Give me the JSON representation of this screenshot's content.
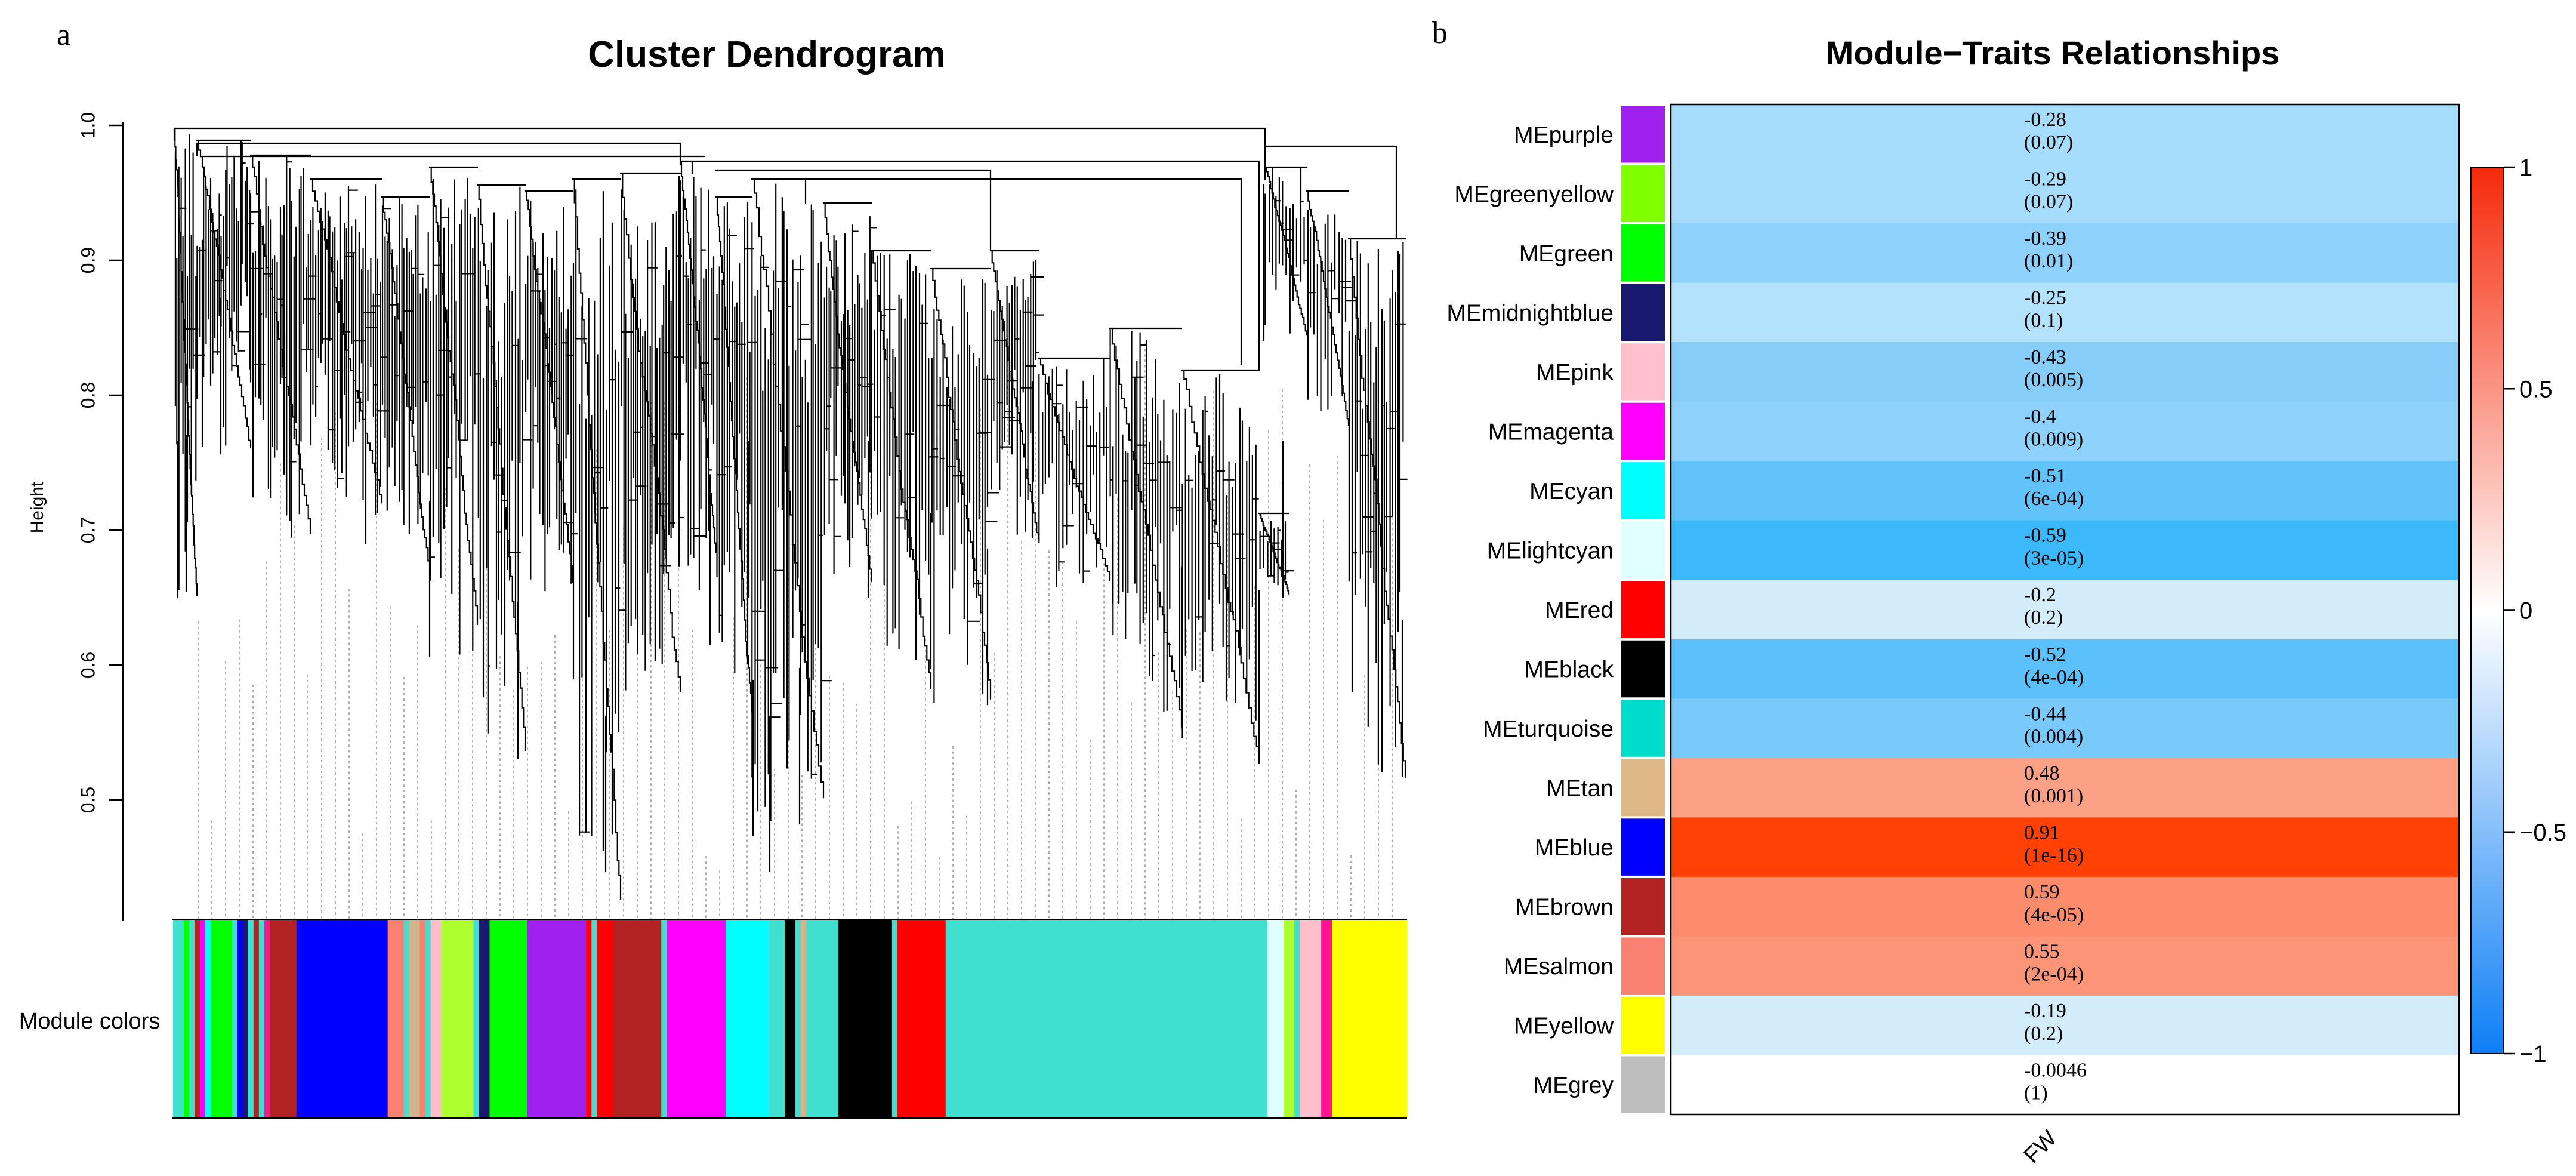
{
  "panel_a": {
    "letter": "a",
    "title": "Cluster Dendrogram",
    "ylabel": "Height",
    "colors_label": "Module colors",
    "yticks": [
      "0.5",
      "0.6",
      "0.7",
      "0.8",
      "0.9",
      "1.0"
    ]
  },
  "panel_b": {
    "letter": "b",
    "title": "Module−Traits Relationships",
    "trait_label": "FW",
    "legend_ticks": [
      "1",
      "0.5",
      "0",
      "−0.5",
      "−1"
    ]
  },
  "chart_data": [
    {
      "type": "dendrogram",
      "title": "Cluster Dendrogram",
      "ylabel": "Height",
      "ylim": [
        0.4,
        1.0
      ],
      "yticks": [
        0.5,
        0.6,
        0.7,
        0.8,
        0.9,
        1.0
      ],
      "color_bar_label": "Module colors",
      "color_bar_segments": [
        {
          "color": "#40e0d0",
          "w": 2
        },
        {
          "color": "#00ff00",
          "w": 1
        },
        {
          "color": "#40e0d0",
          "w": 1
        },
        {
          "color": "#b22222",
          "w": 1
        },
        {
          "color": "#ff00ff",
          "w": 1
        },
        {
          "color": "#00ffff",
          "w": 1
        },
        {
          "color": "#00ff00",
          "w": 4
        },
        {
          "color": "#40e0d0",
          "w": 1
        },
        {
          "color": "#0000ff",
          "w": 1
        },
        {
          "color": "#191970",
          "w": 1
        },
        {
          "color": "#40e0d0",
          "w": 1
        },
        {
          "color": "#b22222",
          "w": 1
        },
        {
          "color": "#40e0d0",
          "w": 1
        },
        {
          "color": "#ff1493",
          "w": 1
        },
        {
          "color": "#b22222",
          "w": 5
        },
        {
          "color": "#0000ff",
          "w": 17
        },
        {
          "color": "#fa8072",
          "w": 3
        },
        {
          "color": "#40e0d0",
          "w": 1
        },
        {
          "color": "#d2b48c",
          "w": 2
        },
        {
          "color": "#fa8072",
          "w": 1
        },
        {
          "color": "#40e0d0",
          "w": 1
        },
        {
          "color": "#ffc0cb",
          "w": 2
        },
        {
          "color": "#adff2f",
          "w": 6
        },
        {
          "color": "#40e0d0",
          "w": 1
        },
        {
          "color": "#191970",
          "w": 2
        },
        {
          "color": "#00ff00",
          "w": 7
        },
        {
          "color": "#a020f0",
          "w": 11
        },
        {
          "color": "#ff0000",
          "w": 1
        },
        {
          "color": "#40e0d0",
          "w": 1
        },
        {
          "color": "#ff0000",
          "w": 3
        },
        {
          "color": "#b22222",
          "w": 9
        },
        {
          "color": "#40e0d0",
          "w": 1
        },
        {
          "color": "#ff00ff",
          "w": 11
        },
        {
          "color": "#00ffff",
          "w": 8
        },
        {
          "color": "#40e0d0",
          "w": 3
        },
        {
          "color": "#000000",
          "w": 2
        },
        {
          "color": "#40e0d0",
          "w": 1
        },
        {
          "color": "#d2b48c",
          "w": 1
        },
        {
          "color": "#40e0d0",
          "w": 6
        },
        {
          "color": "#000000",
          "w": 10
        },
        {
          "color": "#40e0d0",
          "w": 1
        },
        {
          "color": "#ff0000",
          "w": 9
        },
        {
          "color": "#40e0d0",
          "w": 60
        },
        {
          "color": "#e0ffff",
          "w": 3
        },
        {
          "color": "#adff2f",
          "w": 2
        },
        {
          "color": "#40e0d0",
          "w": 1
        },
        {
          "color": "#ffc0cb",
          "w": 4
        },
        {
          "color": "#ff1493",
          "w": 2
        },
        {
          "color": "#ffff00",
          "w": 14
        }
      ]
    },
    {
      "type": "heatmap",
      "title": "Module−Traits Relationships",
      "columns": [
        "FW"
      ],
      "color_scale": {
        "min": -1,
        "max": 1,
        "low": "#0d7ff5",
        "mid": "#ffffff",
        "high": "#ff2000"
      },
      "legend_ticks": [
        1,
        0.5,
        0,
        -0.5,
        -1
      ],
      "rows": [
        {
          "module": "MEpurple",
          "swatch": "#a020f0",
          "r": -0.28,
          "r_label": "-0.28",
          "p_label": "(0.07)",
          "fill": "#a6ddfc"
        },
        {
          "module": "MEgreenyellow",
          "swatch": "#7fff00",
          "r": -0.29,
          "r_label": "-0.29",
          "p_label": "(0.07)",
          "fill": "#a6ddfc"
        },
        {
          "module": "MEgreen",
          "swatch": "#00ff00",
          "r": -0.39,
          "r_label": "-0.39",
          "p_label": "(0.01)",
          "fill": "#8ed1fb"
        },
        {
          "module": "MEmidnightblue",
          "swatch": "#191970",
          "r": -0.25,
          "r_label": "-0.25",
          "p_label": "(0.1)",
          "fill": "#b3e2fc"
        },
        {
          "module": "MEpink",
          "swatch": "#ffc0cb",
          "r": -0.43,
          "r_label": "-0.43",
          "p_label": "(0.005)",
          "fill": "#86cdfa"
        },
        {
          "module": "MEmagenta",
          "swatch": "#ff00ff",
          "r": -0.4,
          "r_label": "-0.4",
          "p_label": "(0.009)",
          "fill": "#8ed1fb"
        },
        {
          "module": "MEcyan",
          "swatch": "#00ffff",
          "r": -0.51,
          "r_label": "-0.51",
          "p_label": "(6e-04)",
          "fill": "#62c3fa"
        },
        {
          "module": "MElightcyan",
          "swatch": "#e0ffff",
          "r": -0.59,
          "r_label": "-0.59",
          "p_label": "(3e-05)",
          "fill": "#3cb9fb"
        },
        {
          "module": "MEred",
          "swatch": "#ff0000",
          "r": -0.2,
          "r_label": "-0.2",
          "p_label": "(0.2)",
          "fill": "#d4edfb"
        },
        {
          "module": "MEblack",
          "swatch": "#000000",
          "r": -0.52,
          "r_label": "-0.52",
          "p_label": "(4e-04)",
          "fill": "#5cc0fa"
        },
        {
          "module": "MEturquoise",
          "swatch": "#00ddcc",
          "r": -0.44,
          "r_label": "-0.44",
          "p_label": "(0.004)",
          "fill": "#79c9fa"
        },
        {
          "module": "MEtan",
          "swatch": "#deb887",
          "r": 0.48,
          "r_label": "0.48",
          "p_label": "(0.001)",
          "fill": "#fca086"
        },
        {
          "module": "MEblue",
          "swatch": "#0000ff",
          "r": 0.91,
          "r_label": "0.91",
          "p_label": "(1e-16)",
          "fill": "#ff4106"
        },
        {
          "module": "MEbrown",
          "swatch": "#b22222",
          "r": 0.59,
          "r_label": "0.59",
          "p_label": "(4e-05)",
          "fill": "#fc8c6c"
        },
        {
          "module": "MEsalmon",
          "swatch": "#fa8072",
          "r": 0.55,
          "r_label": "0.55",
          "p_label": "(2e-04)",
          "fill": "#fc9577"
        },
        {
          "module": "MEyellow",
          "swatch": "#ffff00",
          "r": -0.19,
          "r_label": "-0.19",
          "p_label": "(0.2)",
          "fill": "#d4edfb"
        },
        {
          "module": "MEgrey",
          "swatch": "#bebebe",
          "r": -0.0046,
          "r_label": "-0.0046",
          "p_label": "(1)",
          "fill": "#ffffff"
        }
      ]
    }
  ]
}
